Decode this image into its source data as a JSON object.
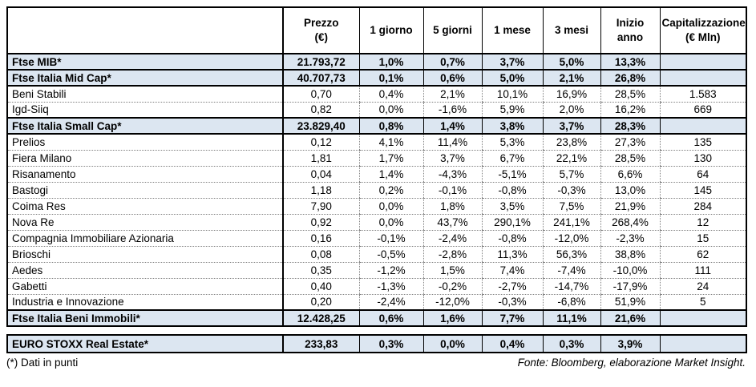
{
  "colors": {
    "highlight_blue": "#dce6f1",
    "border_black": "#000000",
    "dotted_gray": "#808080",
    "text": "#000000"
  },
  "header": {
    "columns": [
      {
        "id": "name",
        "line1": "",
        "line2": ""
      },
      {
        "id": "prezzo",
        "line1": "Prezzo",
        "line2": "(€)"
      },
      {
        "id": "g1",
        "line1": "1 giorno",
        "line2": ""
      },
      {
        "id": "g5",
        "line1": "5 giorni",
        "line2": ""
      },
      {
        "id": "m1",
        "line1": "1 mese",
        "line2": ""
      },
      {
        "id": "m3",
        "line1": "3 mesi",
        "line2": ""
      },
      {
        "id": "ytd",
        "line1": "Inizio anno",
        "line2": ""
      },
      {
        "id": "cap",
        "line1": "Capitalizzazione",
        "line2": "(€ Mln)"
      }
    ]
  },
  "rows": [
    {
      "type": "index",
      "name": "Ftse MIB*",
      "prezzo": "21.793,72",
      "g1": "1,0%",
      "g5": "0,7%",
      "m1": "3,7%",
      "m3": "5,0%",
      "ytd": "13,3%",
      "cap": ""
    },
    {
      "type": "index",
      "name": "Ftse Italia Mid Cap*",
      "prezzo": "40.707,73",
      "g1": "0,1%",
      "g5": "0,6%",
      "m1": "5,0%",
      "m3": "2,1%",
      "ytd": "26,8%",
      "cap": ""
    },
    {
      "type": "stock",
      "name": "Beni Stabili",
      "prezzo": "0,70",
      "g1": "0,4%",
      "g5": "2,1%",
      "m1": "10,1%",
      "m3": "16,9%",
      "ytd": "28,5%",
      "cap": "1.583"
    },
    {
      "type": "stock",
      "name": "Igd-Siiq",
      "prezzo": "0,82",
      "g1": "0,0%",
      "g5": "-1,6%",
      "m1": "5,9%",
      "m3": "2,0%",
      "ytd": "16,2%",
      "cap": "669"
    },
    {
      "type": "index",
      "name": "Ftse Italia Small Cap*",
      "prezzo": "23.829,40",
      "g1": "0,8%",
      "g5": "1,4%",
      "m1": "3,8%",
      "m3": "3,7%",
      "ytd": "28,3%",
      "cap": ""
    },
    {
      "type": "stock",
      "name": "Prelios",
      "prezzo": "0,12",
      "g1": "4,1%",
      "g5": "11,4%",
      "m1": "5,3%",
      "m3": "23,8%",
      "ytd": "27,3%",
      "cap": "135"
    },
    {
      "type": "stock",
      "name": "Fiera Milano",
      "prezzo": "1,81",
      "g1": "1,7%",
      "g5": "3,7%",
      "m1": "6,7%",
      "m3": "22,1%",
      "ytd": "28,5%",
      "cap": "130"
    },
    {
      "type": "stock",
      "name": "Risanamento",
      "prezzo": "0,04",
      "g1": "1,4%",
      "g5": "-4,3%",
      "m1": "-5,1%",
      "m3": "5,7%",
      "ytd": "6,6%",
      "cap": "64"
    },
    {
      "type": "stock",
      "name": "Bastogi",
      "prezzo": "1,18",
      "g1": "0,2%",
      "g5": "-0,1%",
      "m1": "-0,8%",
      "m3": "-0,3%",
      "ytd": "13,0%",
      "cap": "145"
    },
    {
      "type": "stock",
      "name": "Coima Res",
      "prezzo": "7,90",
      "g1": "0,0%",
      "g5": "1,8%",
      "m1": "3,5%",
      "m3": "7,5%",
      "ytd": "21,9%",
      "cap": "284"
    },
    {
      "type": "stock",
      "name": "Nova Re",
      "prezzo": "0,92",
      "g1": "0,0%",
      "g5": "43,7%",
      "m1": "290,1%",
      "m3": "241,1%",
      "ytd": "268,4%",
      "cap": "12"
    },
    {
      "type": "stock",
      "name": "Compagnia Immobiliare Azionaria",
      "prezzo": "0,16",
      "g1": "-0,1%",
      "g5": "-2,4%",
      "m1": "-0,8%",
      "m3": "-12,0%",
      "ytd": "-2,3%",
      "cap": "15"
    },
    {
      "type": "stock",
      "name": "Brioschi",
      "prezzo": "0,08",
      "g1": "-0,5%",
      "g5": "-2,8%",
      "m1": "11,3%",
      "m3": "56,3%",
      "ytd": "38,8%",
      "cap": "62"
    },
    {
      "type": "stock",
      "name": "Aedes",
      "prezzo": "0,35",
      "g1": "-1,2%",
      "g5": "1,5%",
      "m1": "7,4%",
      "m3": "-7,4%",
      "ytd": "-10,0%",
      "cap": "111"
    },
    {
      "type": "stock",
      "name": "Gabetti",
      "prezzo": "0,40",
      "g1": "-1,3%",
      "g5": "-0,2%",
      "m1": "-2,7%",
      "m3": "-14,7%",
      "ytd": "-17,9%",
      "cap": "24"
    },
    {
      "type": "stock",
      "name": "Industria e Innovazione",
      "prezzo": "0,20",
      "g1": "-2,4%",
      "g5": "-12,0%",
      "m1": "-0,3%",
      "m3": "-6,8%",
      "ytd": "51,9%",
      "cap": "5"
    },
    {
      "type": "index",
      "name": "Ftse Italia Beni Immobili*",
      "prezzo": "12.428,25",
      "g1": "0,6%",
      "g5": "1,6%",
      "m1": "7,7%",
      "m3": "11,1%",
      "ytd": "21,6%",
      "cap": ""
    }
  ],
  "euro_row": {
    "type": "index",
    "name": "EURO STOXX Real Estate*",
    "prezzo": "233,83",
    "g1": "0,3%",
    "g5": "0,0%",
    "m1": "0,4%",
    "m3": "0,3%",
    "ytd": "3,9%",
    "cap": ""
  },
  "footnote": "(*) Dati in punti",
  "source": "Fonte: Bloomberg, elaborazione Market Insight."
}
